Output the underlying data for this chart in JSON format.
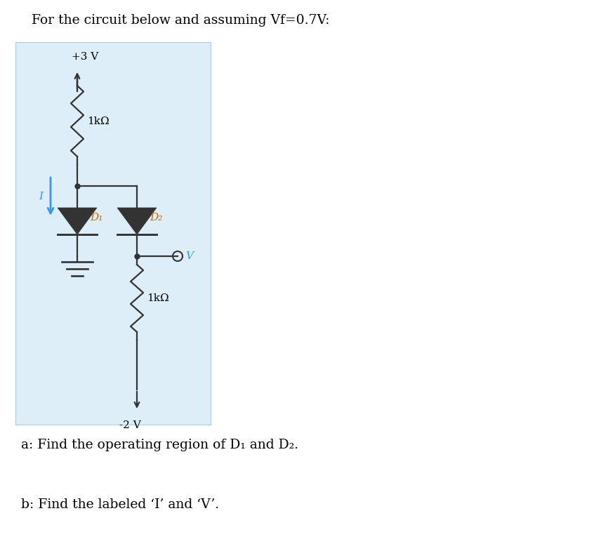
{
  "title": "For the circuit below and assuming Vf=0.7V:",
  "title_fontsize": 13.5,
  "bg_color": "#ddeef8",
  "white_bg": "#ffffff",
  "text_a": "a: Find the operating region of D₁ and D₂.",
  "text_b": "b: Find the labeled ‘I’ and ‘V’.",
  "label_3v": "+3 V",
  "label_m2v": "-2 V",
  "label_1kohm_top": "1kΩ",
  "label_1kohm_bot": "1kΩ",
  "label_D1": "D₁",
  "label_D2": "D₂",
  "label_I": "I",
  "label_V": "V",
  "wire_color": "#333333",
  "arrow_color": "#3399ff",
  "diode_label_color": "#cc6600",
  "lw": 1.6
}
